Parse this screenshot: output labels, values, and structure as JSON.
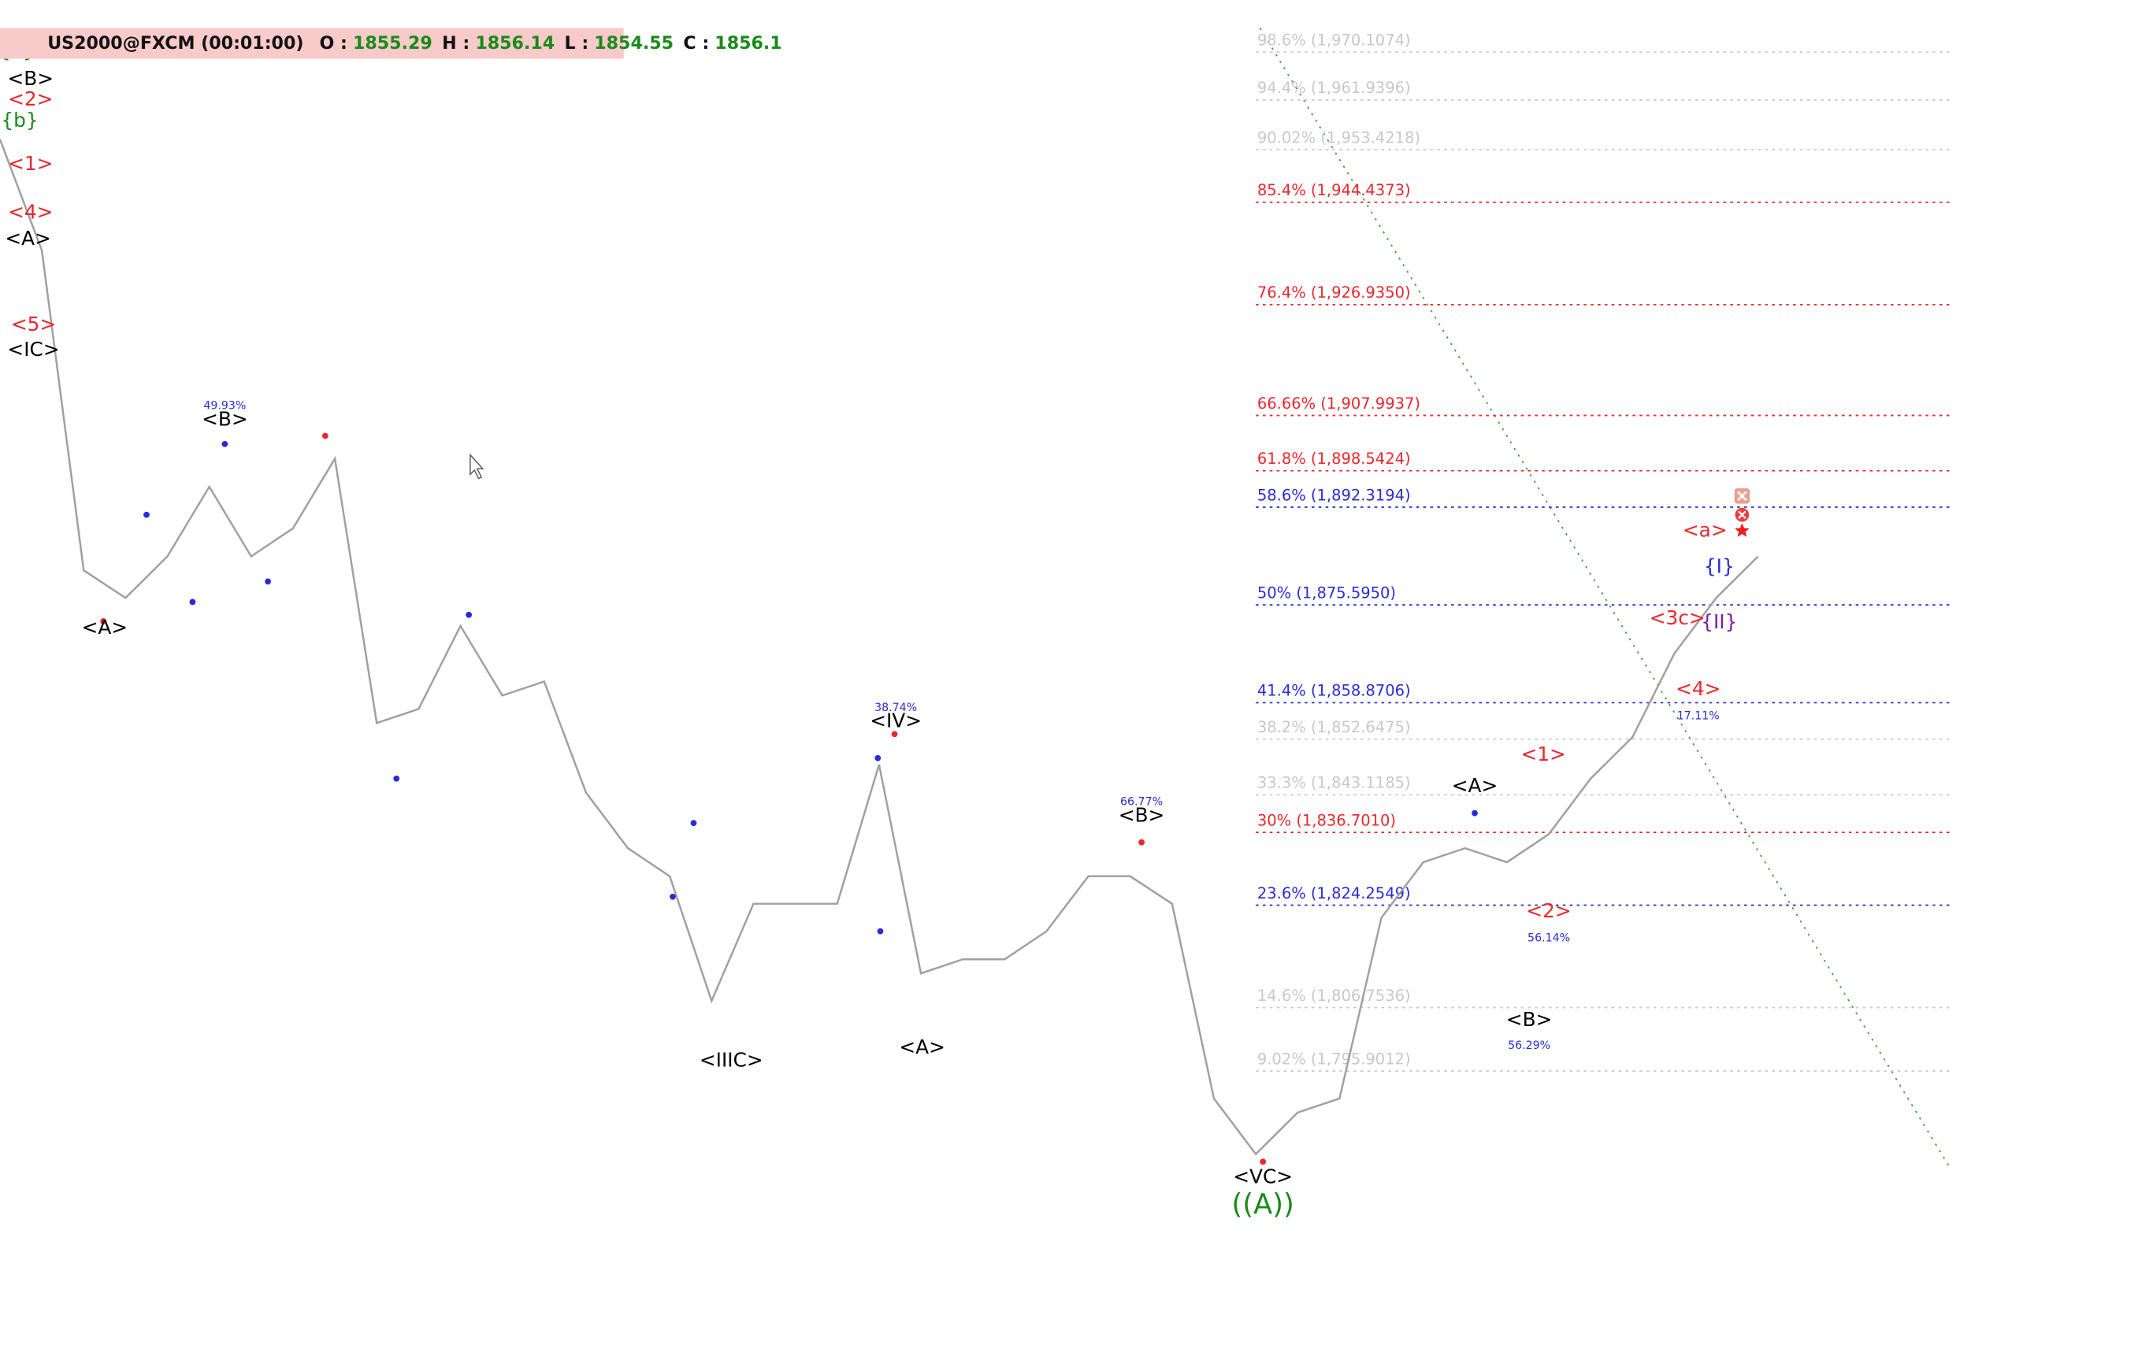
{
  "chart_data": {
    "type": "line",
    "title": "US2000@FXCM (00:01:00)",
    "ohlc": [
      {
        "label": "O :",
        "value": 1855.29
      },
      {
        "label": "H :",
        "value": 1856.14
      },
      {
        "label": "L :",
        "value": 1854.55
      },
      {
        "label": "C :",
        "value": 1856.1
      }
    ],
    "ylim": [
      1747.2,
      1979.0
    ],
    "series": [
      {
        "name": "US2000",
        "color": "#a0a0a0",
        "values": [
          1955.2,
          1936.2,
          1881.5,
          1876.8,
          1883.9,
          1895.8,
          1883.9,
          1888.7,
          1900.6,
          1855.4,
          1857.8,
          1872.0,
          1860.1,
          1862.5,
          1843.5,
          1834.0,
          1829.2,
          1807.9,
          1824.5,
          1824.5,
          1824.5,
          1848.3,
          1812.6,
          1815.0,
          1815.0,
          1819.8,
          1829.2,
          1829.2,
          1824.5,
          1791.2,
          1781.7,
          1788.8,
          1791.2,
          1822.1,
          1831.6,
          1834.0,
          1831.6,
          1836.4,
          1845.9,
          1853.0,
          1867.3,
          1876.8,
          1883.9
        ]
      }
    ],
    "fib_levels": [
      {
        "label": "98.6% (1,970.1074)",
        "value": 1970.1074,
        "color": "#c8c8c8"
      },
      {
        "label": "94.4% (1,961.9396)",
        "value": 1961.9396,
        "color": "#c8c8c8"
      },
      {
        "label": "90.02% (1,953.4218)",
        "value": 1953.4218,
        "color": "#c8c8c8"
      },
      {
        "label": "85.4% (1,944.4373)",
        "value": 1944.4373,
        "color": "#e8282d"
      },
      {
        "label": "76.4% (1,926.9350)",
        "value": 1926.935,
        "color": "#e8282d"
      },
      {
        "label": "66.66% (1,907.9937)",
        "value": 1907.9937,
        "color": "#e8282d"
      },
      {
        "label": "61.8% (1,898.5424)",
        "value": 1898.5424,
        "color": "#e8282d"
      },
      {
        "label": "58.6% (1,892.3194)",
        "value": 1892.3194,
        "color": "#2b2bd6"
      },
      {
        "label": "50% (1,875.5950)",
        "value": 1875.595,
        "color": "#2b2bd6"
      },
      {
        "label": "41.4% (1,858.8706)",
        "value": 1858.8706,
        "color": "#2b2bd6"
      },
      {
        "label": "38.2% (1,852.6475)",
        "value": 1852.6475,
        "color": "#c8c8c8"
      },
      {
        "label": "33.3% (1,843.1185)",
        "value": 1843.1185,
        "color": "#c8c8c8"
      },
      {
        "label": "30% (1,836.7010)",
        "value": 1836.701,
        "color": "#e8282d"
      },
      {
        "label": "23.6% (1,824.2549)",
        "value": 1824.2549,
        "color": "#2b2bd6"
      },
      {
        "label": "14.6% (1,806.7536)",
        "value": 1806.7536,
        "color": "#c8c8c8"
      },
      {
        "label": "9.02% (1,795.9012)",
        "value": 1795.9012,
        "color": "#c8c8c8"
      }
    ],
    "annotations": [
      {
        "text": "<A>",
        "x": 2.5,
        "y": 1871.6,
        "color": "#000000",
        "size": 14
      },
      {
        "text": "<B>",
        "x": 5.37,
        "y": 1907.2,
        "color": "#000000",
        "size": 14
      },
      {
        "text": "49.93%",
        "x": 5.37,
        "y": 1909.6,
        "color": "#2b2bd6",
        "size": 8
      },
      {
        "text": "<IIIC>",
        "x": 17.47,
        "y": 1797.6,
        "color": "#000000",
        "size": 14
      },
      {
        "text": "<IV>",
        "x": 21.4,
        "y": 1855.6,
        "color": "#000000",
        "size": 14
      },
      {
        "text": "38.74%",
        "x": 21.4,
        "y": 1858.0,
        "color": "#2b2bd6",
        "size": 8
      },
      {
        "text": "<A>",
        "x": 22.03,
        "y": 1799.8,
        "color": "#000000",
        "size": 14
      },
      {
        "text": "<B>",
        "x": 27.27,
        "y": 1839.5,
        "color": "#000000",
        "size": 14
      },
      {
        "text": "66.77%",
        "x": 27.27,
        "y": 1841.9,
        "color": "#2b2bd6",
        "size": 8
      },
      {
        "text": "<VC>",
        "x": 30.17,
        "y": 1777.7,
        "color": "#000000",
        "size": 14
      },
      {
        "text": "((A))",
        "x": 30.17,
        "y": 1772.9,
        "color": "#1a8a1a",
        "size": 20
      },
      {
        "text": "<A>",
        "x": 35.23,
        "y": 1844.5,
        "color": "#000000",
        "size": 14
      },
      {
        "text": "<1>",
        "x": 36.87,
        "y": 1849.9,
        "color": "#e8282d",
        "size": 14
      },
      {
        "text": "<2>",
        "x": 37.0,
        "y": 1823.1,
        "color": "#e8282d",
        "size": 14
      },
      {
        "text": "56.14%",
        "x": 37.0,
        "y": 1818.6,
        "color": "#2b2bd6",
        "size": 8
      },
      {
        "text": "<B>",
        "x": 36.53,
        "y": 1804.5,
        "color": "#000000",
        "size": 14
      },
      {
        "text": "56.29%",
        "x": 36.53,
        "y": 1800.2,
        "color": "#2b2bd6",
        "size": 8
      },
      {
        "text": "<3c>",
        "x": 40.07,
        "y": 1873.2,
        "color": "#e8282d",
        "size": 14
      },
      {
        "text": "<4>",
        "x": 40.57,
        "y": 1861.1,
        "color": "#e8282d",
        "size": 14
      },
      {
        "text": "17.11%",
        "x": 40.57,
        "y": 1856.6,
        "color": "#2b2bd6",
        "size": 8
      },
      {
        "text": "<a>",
        "x": 40.73,
        "y": 1888.2,
        "color": "#e8282d",
        "size": 14
      },
      {
        "text": "{I}",
        "x": 41.07,
        "y": 1882.0,
        "color": "#2b2bd6",
        "size": 14
      },
      {
        "text": "{II}",
        "x": 41.07,
        "y": 1872.5,
        "color": "#7a1fa8",
        "size": 14
      },
      {
        "text": "<IC>",
        "x": 0.8,
        "y": 1919.1,
        "color": "#000000",
        "size": 14
      },
      {
        "text": "<5>",
        "x": 0.8,
        "y": 1923.4,
        "color": "#e8282d",
        "size": 14
      },
      {
        "text": "<A>",
        "x": 0.67,
        "y": 1938.1,
        "color": "#000000",
        "size": 14
      },
      {
        "text": "<4>",
        "x": 0.73,
        "y": 1942.6,
        "color": "#e8282d",
        "size": 14
      },
      {
        "text": "<1>",
        "x": 0.73,
        "y": 1950.9,
        "color": "#e8282d",
        "size": 14
      },
      {
        "text": "<2>",
        "x": 0.73,
        "y": 1961.9,
        "color": "#e8282d",
        "size": 14
      },
      {
        "text": "<B>",
        "x": 0.73,
        "y": 1965.4,
        "color": "#000000",
        "size": 14
      },
      {
        "text": "{a}",
        "x": 0.4,
        "y": 1970.2,
        "color": "#1a8a1a",
        "size": 14
      },
      {
        "text": "{b}",
        "x": 0.47,
        "y": 1958.3,
        "color": "#1a8a1a",
        "size": 14
      }
    ],
    "pivots": [
      {
        "x": 3.5,
        "y": 1891.0,
        "color": "#2b2bd6"
      },
      {
        "x": 4.6,
        "y": 1876.1,
        "color": "#2b2bd6"
      },
      {
        "x": 5.37,
        "y": 1903.1,
        "color": "#2b2bd6"
      },
      {
        "x": 6.4,
        "y": 1879.6,
        "color": "#2b2bd6"
      },
      {
        "x": 9.47,
        "y": 1845.9,
        "color": "#2b2bd6"
      },
      {
        "x": 11.2,
        "y": 1873.9,
        "color": "#2b2bd6"
      },
      {
        "x": 16.07,
        "y": 1825.7,
        "color": "#2b2bd6"
      },
      {
        "x": 16.57,
        "y": 1838.3,
        "color": "#2b2bd6"
      },
      {
        "x": 20.97,
        "y": 1849.4,
        "color": "#2b2bd6"
      },
      {
        "x": 21.03,
        "y": 1819.8,
        "color": "#2b2bd6"
      },
      {
        "x": 35.23,
        "y": 1840.0,
        "color": "#2b2bd6"
      },
      {
        "x": 2.47,
        "y": 1872.8,
        "color": "#e8282d"
      },
      {
        "x": 7.77,
        "y": 1904.5,
        "color": "#e8282d"
      },
      {
        "x": 21.37,
        "y": 1853.5,
        "color": "#e8282d"
      },
      {
        "x": 27.27,
        "y": 1835.0,
        "color": "#e8282d"
      },
      {
        "x": 30.17,
        "y": 1780.4,
        "color": "#e8282d"
      }
    ]
  }
}
